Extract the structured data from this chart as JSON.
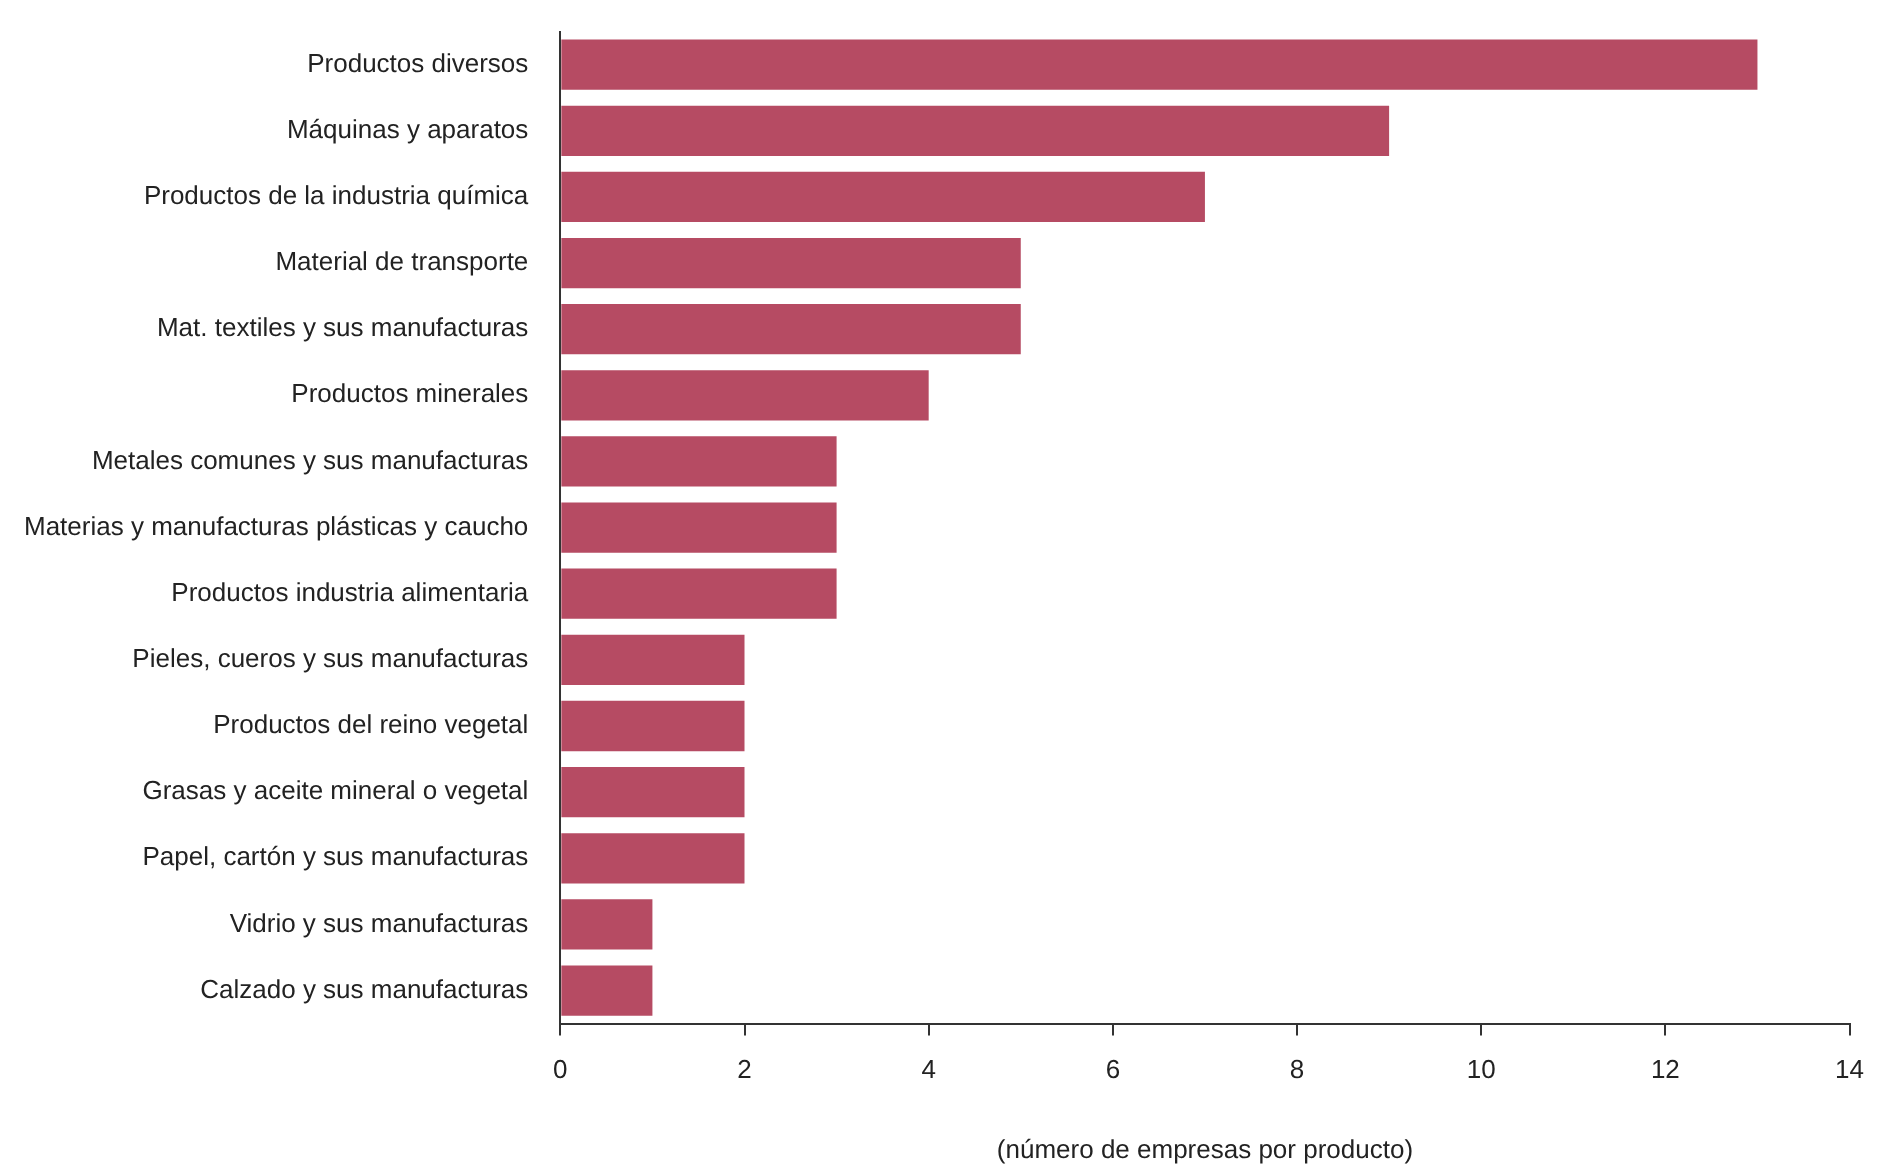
{
  "chart_data": {
    "type": "bar",
    "orientation": "horizontal",
    "xlabel": "(número de empresas por producto)",
    "categories": [
      "Productos diversos",
      "Máquinas y aparatos",
      "Productos de la industria química",
      "Material de transporte",
      "Mat. textiles y sus manufacturas",
      "Productos minerales",
      "Metales comunes y sus manufacturas",
      "Materias y manufacturas plásticas y caucho",
      "Productos industria alimentaria",
      "Pieles, cueros y sus manufacturas",
      "Productos del reino vegetal",
      "Grasas y aceite mineral o vegetal",
      "Papel, cartón y sus manufacturas",
      "Vidrio y sus manufacturas",
      "Calzado y sus manufacturas"
    ],
    "values": [
      13,
      9,
      7,
      5,
      5,
      4,
      3,
      3,
      3,
      2,
      2,
      2,
      2,
      1,
      1
    ],
    "color": "#b64b63",
    "xlim": [
      0,
      14
    ],
    "xticks": [
      0,
      2,
      4,
      6,
      8,
      10,
      12,
      14
    ],
    "grid": false,
    "legend": false
  }
}
